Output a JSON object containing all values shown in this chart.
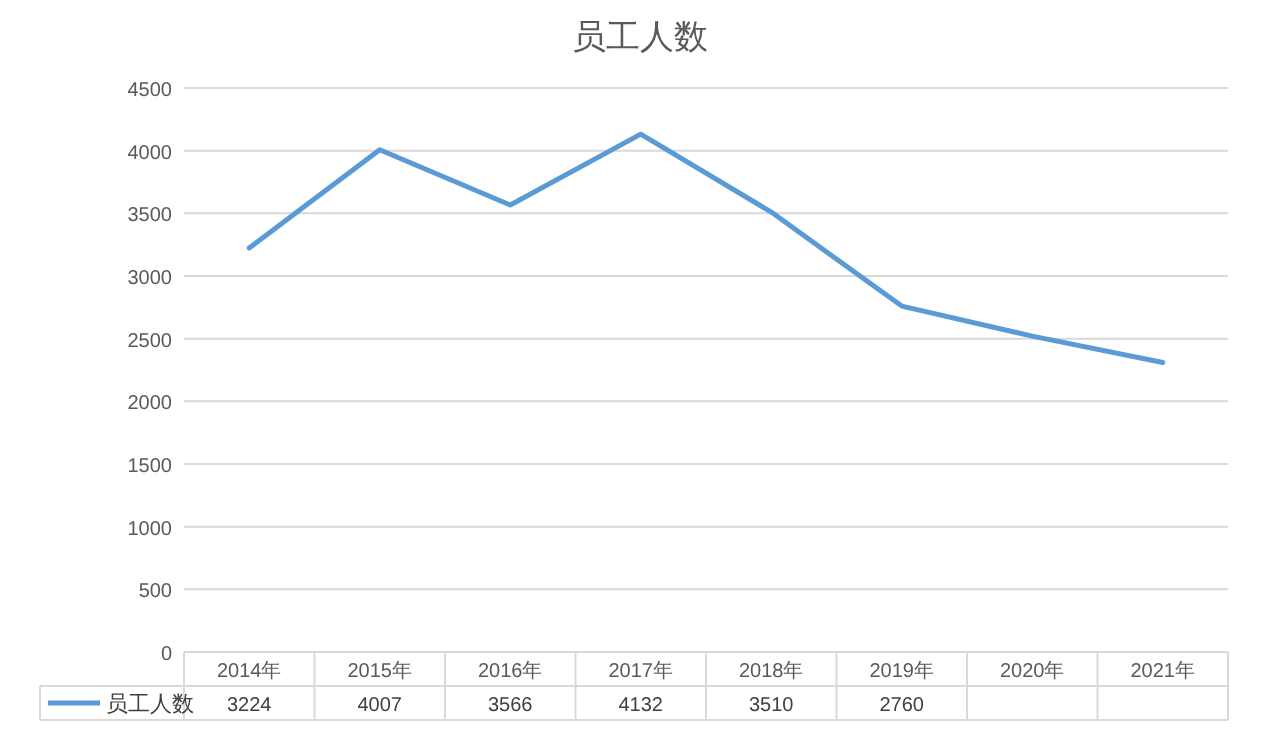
{
  "chart_data": {
    "type": "line",
    "title": "员工人数",
    "categories": [
      "2014年",
      "2015年",
      "2016年",
      "2017年",
      "2018年",
      "2019年",
      "2020年",
      "2021年"
    ],
    "series": [
      {
        "name": "员工人数",
        "color": "#5b9bd5",
        "values": [
          3224,
          4007,
          3566,
          4132,
          3510,
          2760,
          2520,
          2310
        ],
        "value_labels": [
          "3224",
          "4007",
          "3566",
          "4132",
          "3510",
          "2760",
          null,
          null
        ]
      }
    ],
    "ylim": [
      0,
      4500
    ],
    "yticks": [
      0,
      500,
      1000,
      1500,
      2000,
      2500,
      3000,
      3500,
      4000,
      4500
    ],
    "grid": "y",
    "legend": "bottom left",
    "marker": "none",
    "line_style": "solid"
  }
}
